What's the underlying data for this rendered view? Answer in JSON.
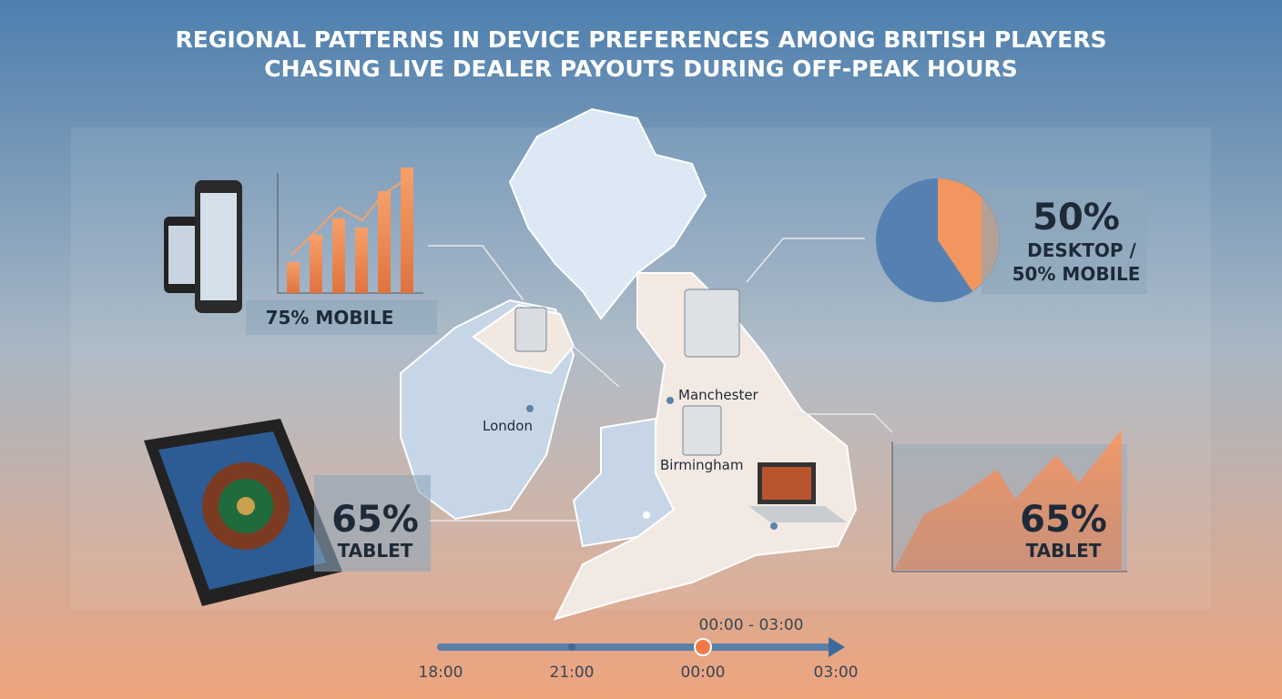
{
  "header": {
    "title": [
      "REGIONAL PATTERNS IN DEVICE PREFERENCES AMONG BRITISH PLAYERS",
      "CHASING LIVE DEALER PAYOUTS DURING OFF-PEAK HOURS"
    ]
  },
  "callouts": [
    {
      "value": "75% MOBILE"
    },
    {
      "value": "50%",
      "label": [
        "DESKTOP /",
        "50% MOBILE"
      ]
    },
    {
      "value": "65%",
      "label": "TABLET"
    },
    {
      "value": "65%",
      "label": "TABLET"
    }
  ],
  "map": {
    "cities": [
      "Manchester",
      "London",
      "Birmingham"
    ]
  },
  "timeline": {
    "window": "00:00 - 03:00",
    "ticks": [
      "18:00",
      "21:00",
      "00:00",
      "03:00"
    ]
  }
}
